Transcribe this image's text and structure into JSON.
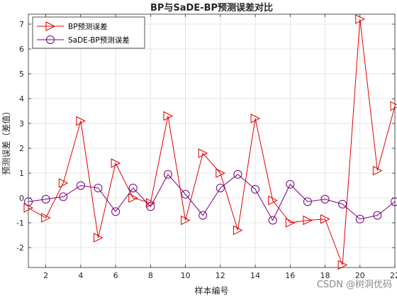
{
  "chart_data": {
    "type": "line",
    "title": "BP与SaDE-BP预测误差对比",
    "xlabel": "样本编号",
    "ylabel": "预测误差（差值）",
    "xlim": [
      1,
      22
    ],
    "ylim": [
      -2.8,
      7.4
    ],
    "xticks": [
      2,
      4,
      6,
      8,
      10,
      12,
      14,
      16,
      18,
      20,
      22
    ],
    "yticks": [
      -2,
      -1,
      0,
      1,
      2,
      3,
      4,
      5,
      6,
      7
    ],
    "grid": true,
    "legend_position": "top-left",
    "x": [
      1,
      2,
      3,
      4,
      5,
      6,
      7,
      8,
      9,
      10,
      11,
      12,
      13,
      14,
      15,
      16,
      17,
      18,
      19,
      20,
      21,
      22
    ],
    "series": [
      {
        "name": "BP预测误差",
        "color": "#e00000",
        "marker": "triangle-right",
        "values": [
          -0.4,
          -0.8,
          0.6,
          3.1,
          -1.6,
          1.4,
          0.0,
          -0.2,
          3.3,
          -0.9,
          1.8,
          1.0,
          -1.3,
          3.2,
          -0.1,
          -1.0,
          -0.9,
          -0.85,
          -2.7,
          7.2,
          1.1,
          3.7
        ]
      },
      {
        "name": "SaDE-BP预测误差",
        "color": "#7a007a",
        "marker": "circle",
        "values": [
          -0.15,
          -0.05,
          0.05,
          0.5,
          0.4,
          -0.55,
          0.4,
          -0.35,
          0.95,
          0.15,
          -0.7,
          0.4,
          0.95,
          0.35,
          -0.9,
          0.55,
          -0.15,
          -0.05,
          -0.25,
          -0.85,
          -0.7,
          -0.15
        ]
      }
    ]
  },
  "watermark": "CSDN @树洞优码"
}
